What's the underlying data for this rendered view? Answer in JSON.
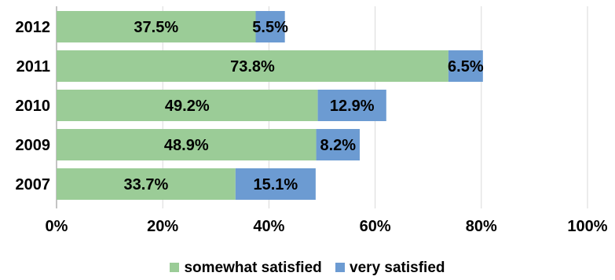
{
  "chart_data": {
    "type": "bar",
    "orientation": "horizontal",
    "stacked": true,
    "categories": [
      "2012",
      "2011",
      "2010",
      "2009",
      "2007"
    ],
    "series": [
      {
        "name": "somewhat satisfied",
        "color": "#9bcc97",
        "values": [
          37.5,
          73.8,
          49.2,
          48.9,
          33.7
        ],
        "labels": [
          "37.5%",
          "73.8%",
          "49.2%",
          "48.9%",
          "33.7%"
        ]
      },
      {
        "name": "very satisfied",
        "color": "#6c9bd2",
        "values": [
          5.5,
          6.5,
          12.9,
          8.2,
          15.1
        ],
        "labels": [
          "5.5%",
          "6.5%",
          "12.9%",
          "8.2%",
          "15.1%"
        ]
      }
    ],
    "xlim": [
      0,
      100
    ],
    "x_ticks": [
      0,
      20,
      40,
      60,
      80,
      100
    ],
    "x_tick_labels": [
      "0%",
      "20%",
      "40%",
      "60%",
      "80%",
      "100%"
    ],
    "grid": "vertical",
    "legend_position": "bottom",
    "title": "",
    "xlabel": "",
    "ylabel": ""
  }
}
